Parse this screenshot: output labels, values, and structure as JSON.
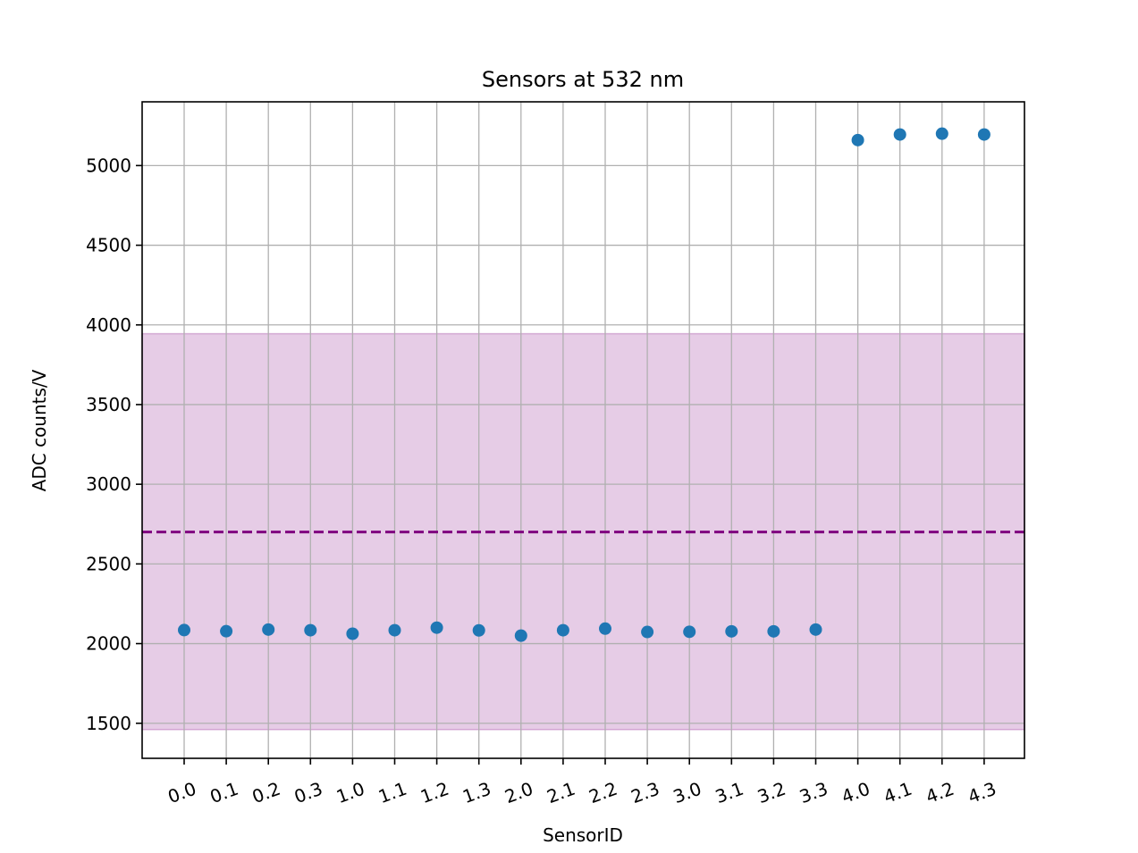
{
  "chart_data": {
    "type": "scatter",
    "title": "Sensors at 532 nm",
    "xlabel": "SensorID",
    "ylabel": "ADC counts/V",
    "categories": [
      "0.0",
      "0.1",
      "0.2",
      "0.3",
      "1.0",
      "1.1",
      "1.2",
      "1.3",
      "2.0",
      "2.1",
      "2.2",
      "2.3",
      "3.0",
      "3.1",
      "3.2",
      "3.3",
      "4.0",
      "4.1",
      "4.2",
      "4.3"
    ],
    "series": [
      {
        "values": [
          2085,
          2078,
          2088,
          2084,
          2062,
          2084,
          2100,
          2083,
          2050,
          2084,
          2094,
          2073,
          2074,
          2077,
          2077,
          2088,
          5160,
          5195,
          5200,
          5195
        ],
        "color": "#1f77b4"
      }
    ],
    "reference_line": {
      "value": 2700,
      "style": "dashed",
      "color": "#800080"
    },
    "band": {
      "lower": 1460,
      "upper": 3945,
      "color": "#800080",
      "opacity": 0.2
    },
    "ylim": [
      1280,
      5400
    ],
    "yticks": [
      1500,
      2000,
      2500,
      3000,
      3500,
      4000,
      4500,
      5000
    ],
    "grid": true,
    "xtick_rotation": -20
  }
}
